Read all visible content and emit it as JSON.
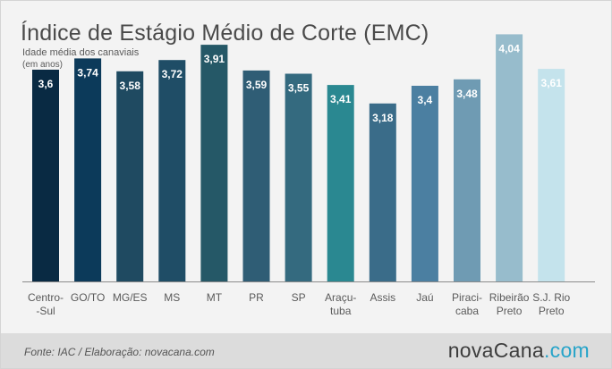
{
  "title": "Índice de Estágio Médio de Corte (EMC)",
  "subtitle": "Idade média dos canaviais",
  "unit": "(em anos)",
  "footer": {
    "source": "Fonte: IAC / Elaboração: novacana.com",
    "logo_part1": "nova",
    "logo_part2": "Cana",
    "logo_part3": ".com"
  },
  "colors": {
    "bars": [
      "#092a43",
      "#0c3a5a",
      "#1f4a61",
      "#1f4d66",
      "#255867",
      "#2f5d75",
      "#346a7f",
      "#2a8891",
      "#3a6c89",
      "#4b7fa1",
      "#6f9bb3",
      "#97bccc",
      "#c4e3ec"
    ],
    "axis": "#8a8a8a",
    "label_text": "#5a5a5a",
    "value_text": "#ffffff"
  },
  "chart_data": {
    "type": "bar",
    "title": "Índice de Estágio Médio de Corte (EMC)",
    "subtitle": "Idade média dos canaviais",
    "ylabel": "(em anos)",
    "categories": [
      [
        "Centro-",
        "-Sul"
      ],
      [
        "GO/TO"
      ],
      [
        "MG/ES"
      ],
      [
        "MS"
      ],
      [
        "MT"
      ],
      [
        "PR"
      ],
      [
        "SP"
      ],
      [
        "Araçu-",
        "tuba"
      ],
      [
        "Assis"
      ],
      [
        "Jaú"
      ],
      [
        "Piraci-",
        "caba"
      ],
      [
        "Ribeirão",
        "Preto"
      ],
      [
        "S.J. Rio",
        "Preto"
      ]
    ],
    "values": [
      3.6,
      3.74,
      3.58,
      3.72,
      3.91,
      3.59,
      3.55,
      3.41,
      3.18,
      3.4,
      3.48,
      4.04,
      3.61
    ],
    "value_labels": [
      "3,6",
      "3,74",
      "3,58",
      "3,72",
      "3,91",
      "3,59",
      "3,55",
      "3,41",
      "3,18",
      "3,4",
      "3,48",
      "4,04",
      "3,61"
    ],
    "grid": false,
    "legend": "none"
  }
}
